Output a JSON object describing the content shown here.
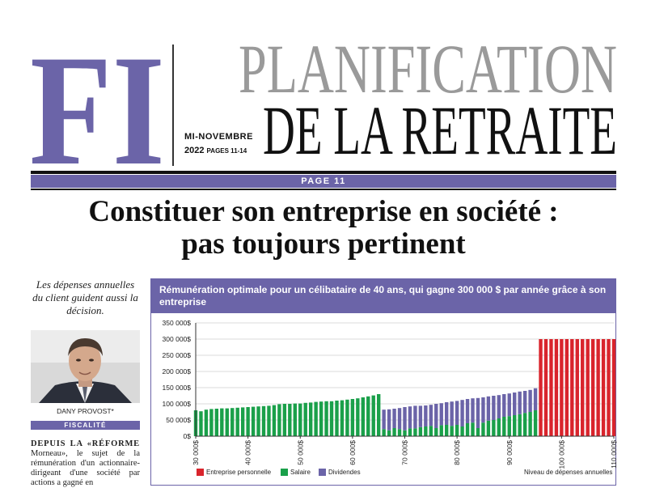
{
  "masthead": {
    "logo": "FI",
    "title_line1": "PLANIFICATION",
    "title_line2": "DE LA RETRAITE",
    "date": "MI-NOVEMBRE",
    "year": "2022",
    "pages": "PAGES 11-14",
    "page_label": "PAGE 11",
    "colors": {
      "purple": "#6b64a8",
      "gray": "#9a9a9a",
      "black": "#111111"
    }
  },
  "article": {
    "headline_line1": "Constituer son entreprise en société :",
    "headline_line2": "pas toujours pertinent",
    "pull_quote": "Les dépenses annuelles du client guident aussi la décision.",
    "author": "DANY PROVOST*",
    "section": "FISCALITÉ",
    "body_lead": "DEPUIS LA «RÉFORME",
    "body_rest": " Morneau», le sujet de la rémunération d'un actionnaire-dirigeant d'une société par actions a gagné en"
  },
  "chart_data": {
    "type": "bar",
    "stacked": true,
    "title": "Rémunération optimale pour un célibataire de 40 ans, qui gagne 300 000 $ par année grâce à son entreprise",
    "xlabel": "Niveau de dépenses annuelles",
    "ylabel": "",
    "ylim": [
      0,
      350000
    ],
    "xlim": [
      30000,
      110000
    ],
    "x_tick_labels": [
      "30 000$",
      "40 000$",
      "50 000$",
      "60 000$",
      "70 000$",
      "80 000$",
      "90 000$",
      "100 000$",
      "110 000$"
    ],
    "y_tick_labels": [
      "0$",
      "50 000$",
      "100 000$",
      "150 000$",
      "200 000$",
      "250 000$",
      "300 000$",
      "350 000$"
    ],
    "x_ticks": [
      30000,
      40000,
      50000,
      60000,
      70000,
      80000,
      90000,
      100000,
      110000
    ],
    "y_ticks": [
      0,
      50000,
      100000,
      150000,
      200000,
      250000,
      300000,
      350000
    ],
    "grid": true,
    "legend_position": "bottom-left",
    "x": [
      30000,
      31000,
      32000,
      33000,
      34000,
      35000,
      36000,
      37000,
      38000,
      39000,
      40000,
      41000,
      42000,
      43000,
      44000,
      45000,
      46000,
      47000,
      48000,
      49000,
      50000,
      51000,
      52000,
      53000,
      54000,
      55000,
      56000,
      57000,
      58000,
      59000,
      60000,
      61000,
      62000,
      63000,
      64000,
      65000,
      66000,
      67000,
      68000,
      69000,
      70000,
      71000,
      72000,
      73000,
      74000,
      75000,
      76000,
      77000,
      78000,
      79000,
      80000,
      81000,
      82000,
      83000,
      84000,
      85000,
      86000,
      87000,
      88000,
      89000,
      90000,
      91000,
      92000,
      93000,
      94000,
      95000,
      96000,
      97000,
      98000,
      99000,
      100000,
      101000,
      102000,
      103000,
      104000,
      105000,
      106000,
      107000,
      108000,
      109000,
      110000
    ],
    "series": [
      {
        "name": "Entreprise personnelle",
        "color": "#d9242c",
        "values": [
          0,
          0,
          0,
          0,
          0,
          0,
          0,
          0,
          0,
          0,
          0,
          0,
          0,
          0,
          0,
          0,
          0,
          0,
          0,
          0,
          0,
          0,
          0,
          0,
          0,
          0,
          0,
          0,
          0,
          0,
          0,
          0,
          0,
          0,
          0,
          0,
          0,
          0,
          0,
          0,
          0,
          0,
          0,
          0,
          0,
          0,
          0,
          0,
          0,
          0,
          0,
          0,
          0,
          0,
          0,
          0,
          0,
          0,
          0,
          0,
          0,
          0,
          0,
          0,
          0,
          0,
          300000,
          300000,
          300000,
          300000,
          300000,
          300000,
          300000,
          300000,
          300000,
          300000,
          300000,
          300000,
          300000,
          300000,
          300000
        ]
      },
      {
        "name": "Salaire",
        "color": "#1aa04a",
        "values": [
          80000,
          77000,
          82000,
          84000,
          85000,
          86000,
          86000,
          87000,
          88000,
          89000,
          90000,
          91000,
          92000,
          93000,
          94000,
          96000,
          99000,
          100000,
          100000,
          101000,
          101000,
          103000,
          104000,
          106000,
          107000,
          108000,
          108000,
          110000,
          111000,
          113000,
          115000,
          117000,
          120000,
          123000,
          126000,
          130000,
          22000,
          18000,
          25000,
          22000,
          18000,
          24000,
          24000,
          28000,
          30000,
          32000,
          25000,
          34000,
          35000,
          32000,
          35000,
          30000,
          40000,
          42000,
          25000,
          42000,
          48000,
          50000,
          55000,
          60000,
          62000,
          65000,
          68000,
          72000,
          75000,
          80000,
          0,
          0,
          0,
          0,
          0,
          0,
          0,
          0,
          0,
          0,
          0,
          0,
          0,
          0,
          0
        ]
      },
      {
        "name": "Dividendes",
        "color": "#6b64a8",
        "values": [
          0,
          0,
          0,
          0,
          0,
          0,
          0,
          0,
          0,
          0,
          0,
          0,
          0,
          0,
          0,
          0,
          0,
          0,
          0,
          0,
          0,
          0,
          0,
          0,
          0,
          0,
          0,
          0,
          0,
          0,
          0,
          0,
          0,
          0,
          0,
          0,
          60000,
          65000,
          60000,
          65000,
          72000,
          68000,
          70000,
          66000,
          65000,
          65000,
          75000,
          68000,
          70000,
          75000,
          74000,
          82000,
          75000,
          75000,
          93000,
          78000,
          75000,
          75000,
          72000,
          70000,
          70000,
          70000,
          70000,
          68000,
          68000,
          68000,
          0,
          0,
          0,
          0,
          0,
          0,
          0,
          0,
          0,
          0,
          0,
          0,
          0,
          0,
          0
        ]
      }
    ]
  }
}
